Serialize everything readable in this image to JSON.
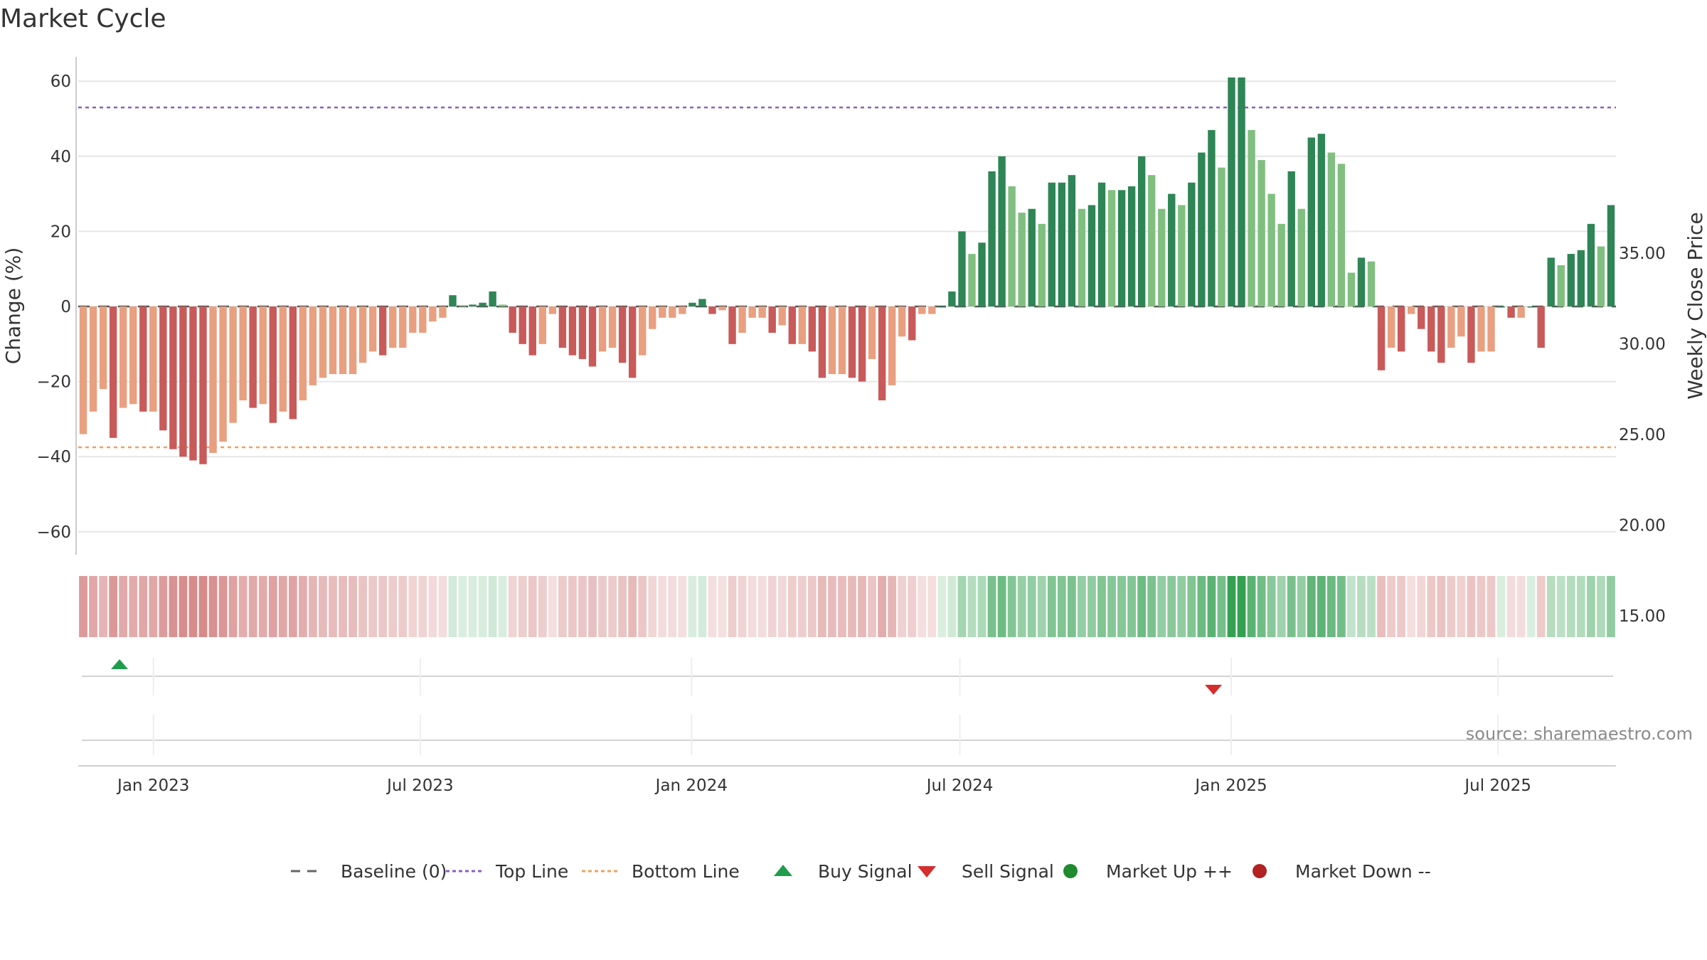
{
  "chart_data": {
    "type": "bar",
    "title": "Market Cycle",
    "ylabel": "Change (%)",
    "y2label": "Weekly Close Price",
    "ylim": [
      -67,
      67
    ],
    "yticks": [
      60,
      40,
      20,
      0,
      -20,
      -40,
      -60
    ],
    "ytick_labels": [
      "60",
      "40",
      "20",
      "0",
      "−20",
      "−40",
      "−60"
    ],
    "y2ticks": [
      35,
      30,
      25,
      20,
      15
    ],
    "y2tick_labels": [
      "35.00",
      "30.00",
      "25.00",
      "20.00",
      "15.00"
    ],
    "y2lim": [
      12.8,
      38.5
    ],
    "x_start": "2022-11-11",
    "x_end": "2025-09-19",
    "xticks": [
      "2023-01-01",
      "2023-07-01",
      "2024-01-01",
      "2024-07-01",
      "2025-01-01",
      "2025-07-01"
    ],
    "xtick_labels": [
      "Jan 2023",
      "Jul 2023",
      "Jan 2024",
      "Jul 2024",
      "Jan 2025",
      "Jul 2025"
    ],
    "top_line": 53,
    "bottom_line": -37.5,
    "grid": true,
    "series": [
      {
        "name": "Change (%)",
        "values": [
          -34,
          -28,
          -22,
          -35,
          -27,
          -26,
          -28,
          -28,
          -33,
          -38,
          -40,
          -41,
          -42,
          -39,
          -36,
          -31,
          -25,
          -27,
          -26,
          -31,
          -28,
          -30,
          -25,
          -21,
          -19,
          -18,
          -18,
          -18,
          -15,
          -12,
          -13,
          -11,
          -11,
          -7,
          -7,
          -4,
          -3,
          3,
          0,
          0.5,
          1,
          4,
          0.5,
          -7,
          -10,
          -13,
          -10,
          -2,
          -11,
          -13,
          -14,
          -16,
          -12,
          -11,
          -15,
          -19,
          -13,
          -6,
          -3,
          -3,
          -2,
          1,
          2,
          -2,
          -1,
          -10,
          -7,
          -3,
          -3,
          -7,
          -5,
          -10,
          -10,
          -12,
          -19,
          -18,
          -18,
          -19,
          -20,
          -14,
          -25,
          -21,
          -8,
          -9,
          -2,
          -2,
          0,
          4,
          20,
          14,
          17,
          36,
          40,
          32,
          25,
          26,
          22,
          33,
          33,
          35,
          26,
          27,
          33,
          31,
          31,
          32,
          40,
          35,
          26,
          30,
          27,
          33,
          41,
          47,
          37,
          61,
          61,
          47,
          39,
          30,
          22,
          36,
          26,
          45,
          46,
          41,
          38,
          9,
          13,
          12,
          -17,
          -11,
          -12,
          -2,
          -6,
          -12,
          -15,
          -11,
          -8,
          -15,
          -12,
          -12,
          0,
          -3,
          -3,
          0,
          -11,
          13,
          11,
          14,
          15,
          22,
          16,
          27
        ]
      }
    ],
    "bar_color_scheme": "green above zero, red/orange below zero; darker = rising week, lighter = falling week",
    "signals": {
      "buy": [
        "2022-12-09"
      ],
      "sell": [
        "2024-12-20"
      ]
    },
    "legend_position": "bottom-center"
  },
  "source_text": "source: sharemaestro.com",
  "legend": {
    "items": [
      {
        "label": "Baseline (0)",
        "kind": "dash",
        "color": "#666666"
      },
      {
        "label": "Top Line",
        "kind": "dotted",
        "color": "#8b5fbf"
      },
      {
        "label": "Bottom Line",
        "kind": "dotted",
        "color": "#f0a060"
      },
      {
        "label": "Buy Signal",
        "kind": "triangle-up",
        "color": "#1f9d4d"
      },
      {
        "label": "Sell Signal",
        "kind": "triangle-down",
        "color": "#d62d2d"
      },
      {
        "label": "Market Up ++",
        "kind": "dot",
        "color": "#1f8a2e"
      },
      {
        "label": "Market Down --",
        "kind": "dot",
        "color": "#b22222"
      }
    ]
  },
  "colors": {
    "up_dark": "#2e8555",
    "up_light": "#80bf80",
    "down_dark": "#c85a5a",
    "down_light": "#e8a080",
    "grid": "#e6e6e6",
    "top_line": "#8b5fbf",
    "bottom_line": "#f0a060"
  }
}
